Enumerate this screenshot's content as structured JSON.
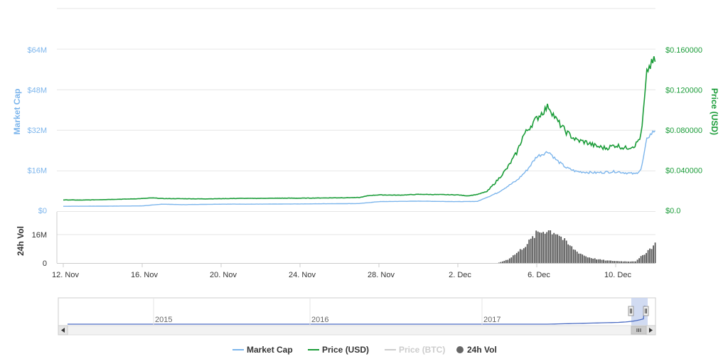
{
  "chart_data": {
    "type": "line",
    "x_ticks": [
      "12. Nov",
      "16. Nov",
      "20. Nov",
      "24. Nov",
      "28. Nov",
      "2. Dec",
      "6. Dec",
      "10. Dec"
    ],
    "y_left": {
      "label": "Market Cap",
      "ticks": [
        "$0",
        "$16M",
        "$32M",
        "$48M",
        "$64M"
      ],
      "ylim": [
        0,
        64000000
      ]
    },
    "y_right": {
      "label": "Price (USD)",
      "ticks": [
        "$0.0",
        "$0.040000",
        "$0.080000",
        "$0.120000",
        "$0.160000"
      ],
      "ylim": [
        0,
        0.16
      ]
    },
    "volume_axis": {
      "label": "24h Vol",
      "ticks": [
        "0",
        "16M"
      ],
      "ylim": [
        0,
        16000000
      ]
    },
    "x_range_days": [
      0,
      30.5
    ],
    "series": [
      {
        "name": "Price (USD)",
        "color": "#1a9c38",
        "points": [
          [
            0,
            0.0105
          ],
          [
            1,
            0.0103
          ],
          [
            2,
            0.0108
          ],
          [
            3,
            0.0112
          ],
          [
            4,
            0.0118
          ],
          [
            4.5,
            0.0125
          ],
          [
            5,
            0.0118
          ],
          [
            6,
            0.0117
          ],
          [
            7,
            0.0115
          ],
          [
            8,
            0.0117
          ],
          [
            9,
            0.012
          ],
          [
            10,
            0.012
          ],
          [
            11,
            0.0122
          ],
          [
            12,
            0.0122
          ],
          [
            13,
            0.0124
          ],
          [
            14,
            0.0126
          ],
          [
            15,
            0.0128
          ],
          [
            15.5,
            0.0148
          ],
          [
            16,
            0.0155
          ],
          [
            17,
            0.0152
          ],
          [
            18,
            0.016
          ],
          [
            19,
            0.0158
          ],
          [
            20,
            0.0155
          ],
          [
            20.5,
            0.0145
          ],
          [
            21,
            0.016
          ],
          [
            21.5,
            0.019
          ],
          [
            22,
            0.03
          ],
          [
            22.5,
            0.042
          ],
          [
            23,
            0.058
          ],
          [
            23.3,
            0.074
          ],
          [
            23.8,
            0.087
          ],
          [
            24.2,
            0.096
          ],
          [
            24.6,
            0.104
          ],
          [
            25,
            0.09
          ],
          [
            25.5,
            0.078
          ],
          [
            26,
            0.07
          ],
          [
            26.5,
            0.068
          ],
          [
            27,
            0.064
          ],
          [
            27.5,
            0.062
          ],
          [
            28,
            0.065
          ],
          [
            28.5,
            0.062
          ],
          [
            29,
            0.065
          ],
          [
            29.3,
            0.075
          ],
          [
            29.6,
            0.14
          ],
          [
            30,
            0.15
          ],
          [
            30.2,
            0.163
          ],
          [
            30.4,
            0.14
          ],
          [
            30.6,
            0.11
          ],
          [
            31,
            0.105
          ],
          [
            31.3,
            0.092
          ],
          [
            31.6,
            0.104
          ],
          [
            32,
            0.103
          ],
          [
            32.5,
            0.098
          ],
          [
            32.8,
            0.103
          ],
          [
            33,
            0.097
          ]
        ]
      },
      {
        "name": "Market Cap",
        "color": "#7cb5ec",
        "points": [
          [
            0,
            1650000
          ],
          [
            2,
            1700000
          ],
          [
            4,
            1800000
          ],
          [
            5,
            2500000
          ],
          [
            6,
            2300000
          ],
          [
            8,
            2500000
          ],
          [
            10,
            2500000
          ],
          [
            12,
            2600000
          ],
          [
            14,
            2700000
          ],
          [
            15,
            2750000
          ],
          [
            16,
            3500000
          ],
          [
            18,
            3700000
          ],
          [
            20,
            3500000
          ],
          [
            21,
            3600000
          ],
          [
            22,
            7000000
          ],
          [
            23,
            12000000
          ],
          [
            23.5,
            16000000
          ],
          [
            24,
            21500000
          ],
          [
            24.6,
            23500000
          ],
          [
            25,
            20000000
          ],
          [
            25.5,
            17000000
          ],
          [
            26,
            15500000
          ],
          [
            27,
            15000000
          ],
          [
            28,
            15500000
          ],
          [
            29,
            14500000
          ],
          [
            29.3,
            16500000
          ],
          [
            29.6,
            29000000
          ],
          [
            30,
            32000000
          ],
          [
            30.2,
            36500000
          ],
          [
            30.4,
            32000000
          ],
          [
            30.6,
            25000000
          ],
          [
            31,
            22000000
          ],
          [
            31.3,
            19000000
          ],
          [
            31.6,
            21500000
          ],
          [
            32,
            21000000
          ],
          [
            32.5,
            20000000
          ],
          [
            33,
            21000000
          ]
        ]
      },
      {
        "name": "24h Vol",
        "color": "#666666",
        "points": [
          [
            22,
            0
          ],
          [
            22.5,
            2000000
          ],
          [
            23,
            6000000
          ],
          [
            23.5,
            11000000
          ],
          [
            24,
            17000000
          ],
          [
            24.5,
            18500000
          ],
          [
            25,
            17000000
          ],
          [
            25.5,
            11000000
          ],
          [
            26,
            6500000
          ],
          [
            26.5,
            3500000
          ],
          [
            27,
            2200000
          ],
          [
            27.5,
            1400000
          ],
          [
            28,
            1100000
          ],
          [
            28.5,
            900000
          ],
          [
            29,
            1000000
          ],
          [
            29.5,
            6000000
          ],
          [
            30,
            11000000
          ],
          [
            30.5,
            13500000
          ],
          [
            31,
            12000000
          ],
          [
            31.5,
            9000000
          ],
          [
            32,
            4500000
          ],
          [
            32.5,
            3000000
          ],
          [
            33,
            2000000
          ]
        ]
      }
    ],
    "navigator": {
      "labels": [
        "2015",
        "2016",
        "2017"
      ]
    },
    "legend": [
      {
        "name": "Market Cap",
        "color": "#7cb5ec",
        "symbol": "line",
        "enabled": true
      },
      {
        "name": "Price (USD)",
        "color": "#1a9c38",
        "symbol": "line",
        "enabled": true
      },
      {
        "name": "Price (BTC)",
        "color": "#cccccc",
        "symbol": "line",
        "enabled": false
      },
      {
        "name": "24h Vol",
        "color": "#666666",
        "symbol": "circle",
        "enabled": true
      }
    ],
    "grid": true,
    "legend_position": "bottom-center"
  }
}
